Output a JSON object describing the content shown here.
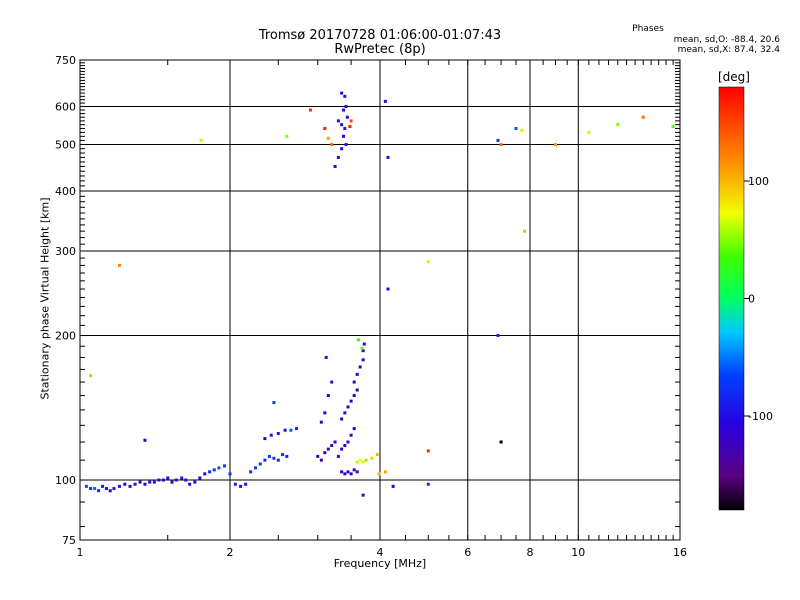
{
  "title_line1": "Tromsø 20170728 01:06:00-01:07:43",
  "title_line2": "RwPretec (8p)",
  "phases": {
    "heading": "Phases",
    "line_o": "mean, sd,O: -88.4, 20.6",
    "line_x": "mean, sd,X:  87.4, 32.4"
  },
  "colorbar": {
    "label": "[deg]",
    "ticks": [
      {
        "value": 100,
        "label": "100"
      },
      {
        "value": 0,
        "label": "0"
      },
      {
        "value": -100,
        "label": "-100"
      }
    ],
    "range": [
      -180,
      180
    ]
  },
  "chart_data": {
    "type": "scatter",
    "xlabel": "Frequency [MHz]",
    "ylabel": "Stationary phase Virtual Height [km]",
    "xscale": "log",
    "yscale": "log",
    "xlim": [
      1,
      16
    ],
    "ylim": [
      75,
      750
    ],
    "xticks": [
      {
        "v": 1,
        "label": "1"
      },
      {
        "v": 2,
        "label": "2"
      },
      {
        "v": 4,
        "label": "4"
      },
      {
        "v": 6,
        "label": "6"
      },
      {
        "v": 8,
        "label": "8"
      },
      {
        "v": 10,
        "label": "10"
      },
      {
        "v": 16,
        "label": "16"
      }
    ],
    "yticks": [
      {
        "v": 75,
        "label": "75"
      },
      {
        "v": 100,
        "label": "100"
      },
      {
        "v": 200,
        "label": "200"
      },
      {
        "v": 300,
        "label": "300"
      },
      {
        "v": 400,
        "label": "400"
      },
      {
        "v": 500,
        "label": "500"
      },
      {
        "v": 600,
        "label": "600"
      },
      {
        "v": 750,
        "label": "750"
      }
    ],
    "grid": true,
    "points": [
      {
        "x": 1.03,
        "y": 97,
        "p": -60
      },
      {
        "x": 1.05,
        "y": 96,
        "p": -70
      },
      {
        "x": 1.07,
        "y": 96,
        "p": -55
      },
      {
        "x": 1.09,
        "y": 95,
        "p": -80
      },
      {
        "x": 1.11,
        "y": 97,
        "p": -90
      },
      {
        "x": 1.13,
        "y": 96,
        "p": -100
      },
      {
        "x": 1.15,
        "y": 95,
        "p": -110
      },
      {
        "x": 1.17,
        "y": 96,
        "p": -95
      },
      {
        "x": 1.2,
        "y": 97,
        "p": -100
      },
      {
        "x": 1.23,
        "y": 98,
        "p": -110
      },
      {
        "x": 1.26,
        "y": 97,
        "p": -100
      },
      {
        "x": 1.29,
        "y": 98,
        "p": -90
      },
      {
        "x": 1.32,
        "y": 99,
        "p": -95
      },
      {
        "x": 1.35,
        "y": 98,
        "p": -110
      },
      {
        "x": 1.38,
        "y": 99,
        "p": -100
      },
      {
        "x": 1.41,
        "y": 99,
        "p": -90
      },
      {
        "x": 1.44,
        "y": 100,
        "p": -110
      },
      {
        "x": 1.47,
        "y": 100,
        "p": -95
      },
      {
        "x": 1.5,
        "y": 101,
        "p": -100
      },
      {
        "x": 1.53,
        "y": 99,
        "p": -110
      },
      {
        "x": 1.56,
        "y": 100,
        "p": -95
      },
      {
        "x": 1.6,
        "y": 101,
        "p": -90
      },
      {
        "x": 1.63,
        "y": 100,
        "p": -100
      },
      {
        "x": 1.66,
        "y": 98,
        "p": -110
      },
      {
        "x": 1.7,
        "y": 99,
        "p": -95
      },
      {
        "x": 1.74,
        "y": 101,
        "p": -100
      },
      {
        "x": 1.78,
        "y": 103,
        "p": -110
      },
      {
        "x": 1.82,
        "y": 104,
        "p": -80
      },
      {
        "x": 1.86,
        "y": 105,
        "p": -70
      },
      {
        "x": 1.9,
        "y": 106,
        "p": -60
      },
      {
        "x": 1.95,
        "y": 107,
        "p": -75
      },
      {
        "x": 2.0,
        "y": 103,
        "p": -70
      },
      {
        "x": 2.05,
        "y": 98,
        "p": -90
      },
      {
        "x": 2.1,
        "y": 97,
        "p": -100
      },
      {
        "x": 2.15,
        "y": 98,
        "p": -95
      },
      {
        "x": 2.2,
        "y": 104,
        "p": -80
      },
      {
        "x": 2.25,
        "y": 106,
        "p": -70
      },
      {
        "x": 2.3,
        "y": 108,
        "p": -75
      },
      {
        "x": 2.35,
        "y": 110,
        "p": -80
      },
      {
        "x": 2.4,
        "y": 112,
        "p": -70
      },
      {
        "x": 2.45,
        "y": 111,
        "p": -75
      },
      {
        "x": 2.5,
        "y": 110,
        "p": -80
      },
      {
        "x": 2.55,
        "y": 113,
        "p": -70
      },
      {
        "x": 2.6,
        "y": 112,
        "p": -85
      },
      {
        "x": 2.35,
        "y": 122,
        "p": -110
      },
      {
        "x": 2.42,
        "y": 124,
        "p": -100
      },
      {
        "x": 2.5,
        "y": 125,
        "p": -90
      },
      {
        "x": 2.58,
        "y": 127,
        "p": -100
      },
      {
        "x": 2.65,
        "y": 127,
        "p": -60
      },
      {
        "x": 2.72,
        "y": 128,
        "p": -80
      },
      {
        "x": 2.45,
        "y": 145,
        "p": -75
      },
      {
        "x": 1.35,
        "y": 121,
        "p": -110
      },
      {
        "x": 3.0,
        "y": 112,
        "p": -120
      },
      {
        "x": 3.05,
        "y": 110,
        "p": -130
      },
      {
        "x": 3.1,
        "y": 114,
        "p": -110
      },
      {
        "x": 3.15,
        "y": 116,
        "p": -120
      },
      {
        "x": 3.2,
        "y": 118,
        "p": -125
      },
      {
        "x": 3.25,
        "y": 120,
        "p": -115
      },
      {
        "x": 3.05,
        "y": 132,
        "p": -120
      },
      {
        "x": 3.1,
        "y": 138,
        "p": -110
      },
      {
        "x": 3.15,
        "y": 150,
        "p": -115
      },
      {
        "x": 3.2,
        "y": 160,
        "p": -120
      },
      {
        "x": 3.12,
        "y": 180,
        "p": -100
      },
      {
        "x": 3.35,
        "y": 104,
        "p": -120
      },
      {
        "x": 3.4,
        "y": 103,
        "p": -125
      },
      {
        "x": 3.45,
        "y": 104,
        "p": -110
      },
      {
        "x": 3.5,
        "y": 103,
        "p": -115
      },
      {
        "x": 3.55,
        "y": 105,
        "p": -120
      },
      {
        "x": 3.6,
        "y": 104,
        "p": -115
      },
      {
        "x": 3.3,
        "y": 112,
        "p": -130
      },
      {
        "x": 3.35,
        "y": 116,
        "p": -125
      },
      {
        "x": 3.4,
        "y": 118,
        "p": -120
      },
      {
        "x": 3.45,
        "y": 120,
        "p": -115
      },
      {
        "x": 3.5,
        "y": 124,
        "p": -120
      },
      {
        "x": 3.55,
        "y": 128,
        "p": -110
      },
      {
        "x": 3.35,
        "y": 134,
        "p": -120
      },
      {
        "x": 3.4,
        "y": 138,
        "p": -115
      },
      {
        "x": 3.45,
        "y": 142,
        "p": -110
      },
      {
        "x": 3.5,
        "y": 146,
        "p": -115
      },
      {
        "x": 3.55,
        "y": 150,
        "p": -110
      },
      {
        "x": 3.6,
        "y": 154,
        "p": -115
      },
      {
        "x": 3.55,
        "y": 160,
        "p": -110
      },
      {
        "x": 3.6,
        "y": 166,
        "p": -115
      },
      {
        "x": 3.65,
        "y": 172,
        "p": -120
      },
      {
        "x": 3.7,
        "y": 178,
        "p": -110
      },
      {
        "x": 3.7,
        "y": 186,
        "p": -115
      },
      {
        "x": 3.72,
        "y": 192,
        "p": -105
      },
      {
        "x": 3.62,
        "y": 196,
        "p": 30
      },
      {
        "x": 3.68,
        "y": 188,
        "p": 40
      },
      {
        "x": 3.6,
        "y": 109,
        "p": 60
      },
      {
        "x": 3.65,
        "y": 110,
        "p": 70
      },
      {
        "x": 3.7,
        "y": 109,
        "p": 80
      },
      {
        "x": 3.75,
        "y": 110,
        "p": 50
      },
      {
        "x": 3.85,
        "y": 111,
        "p": 90
      },
      {
        "x": 3.95,
        "y": 113,
        "p": 100
      },
      {
        "x": 3.98,
        "y": 103,
        "p": 100
      },
      {
        "x": 4.1,
        "y": 104,
        "p": 110
      },
      {
        "x": 3.7,
        "y": 93,
        "p": -120
      },
      {
        "x": 4.25,
        "y": 97,
        "p": -110
      },
      {
        "x": 5.0,
        "y": 98,
        "p": -80
      },
      {
        "x": 5.0,
        "y": 115,
        "p": 160
      },
      {
        "x": 3.35,
        "y": 640,
        "p": -110
      },
      {
        "x": 3.4,
        "y": 630,
        "p": -100
      },
      {
        "x": 3.42,
        "y": 600,
        "p": -120
      },
      {
        "x": 3.38,
        "y": 590,
        "p": -100
      },
      {
        "x": 3.44,
        "y": 570,
        "p": -110
      },
      {
        "x": 3.35,
        "y": 550,
        "p": -100
      },
      {
        "x": 3.4,
        "y": 540,
        "p": -95
      },
      {
        "x": 3.38,
        "y": 520,
        "p": -110
      },
      {
        "x": 3.42,
        "y": 500,
        "p": -90
      },
      {
        "x": 3.35,
        "y": 490,
        "p": -100
      },
      {
        "x": 3.3,
        "y": 470,
        "p": -110
      },
      {
        "x": 3.25,
        "y": 450,
        "p": -105
      },
      {
        "x": 3.3,
        "y": 560,
        "p": -100
      },
      {
        "x": 3.5,
        "y": 560,
        "p": 150
      },
      {
        "x": 3.48,
        "y": 545,
        "p": 170
      },
      {
        "x": 3.1,
        "y": 540,
        "p": 170
      },
      {
        "x": 3.15,
        "y": 515,
        "p": 110
      },
      {
        "x": 3.2,
        "y": 500,
        "p": 130
      },
      {
        "x": 2.9,
        "y": 590,
        "p": 160
      },
      {
        "x": 2.6,
        "y": 520,
        "p": 50
      },
      {
        "x": 4.1,
        "y": 615,
        "p": -110
      },
      {
        "x": 4.15,
        "y": 470,
        "p": -100
      },
      {
        "x": 4.15,
        "y": 250,
        "p": -110
      },
      {
        "x": 1.75,
        "y": 510,
        "p": 60
      },
      {
        "x": 1.2,
        "y": 280,
        "p": 120
      },
      {
        "x": 1.05,
        "y": 165,
        "p": 100
      },
      {
        "x": 5.0,
        "y": 285,
        "p": 60
      },
      {
        "x": 6.9,
        "y": 510,
        "p": -70
      },
      {
        "x": 7.0,
        "y": 500,
        "p": 130
      },
      {
        "x": 7.5,
        "y": 540,
        "p": -60
      },
      {
        "x": 7.7,
        "y": 535,
        "p": 80
      },
      {
        "x": 7.8,
        "y": 330,
        "p": 100
      },
      {
        "x": 9.0,
        "y": 500,
        "p": 110
      },
      {
        "x": 10.5,
        "y": 530,
        "p": 60
      },
      {
        "x": 12.0,
        "y": 550,
        "p": 50
      },
      {
        "x": 13.5,
        "y": 570,
        "p": 130
      },
      {
        "x": 15.5,
        "y": 545,
        "p": 40
      },
      {
        "x": 6.9,
        "y": 200,
        "p": -80
      },
      {
        "x": 7.0,
        "y": 120,
        "p": -180
      }
    ]
  }
}
